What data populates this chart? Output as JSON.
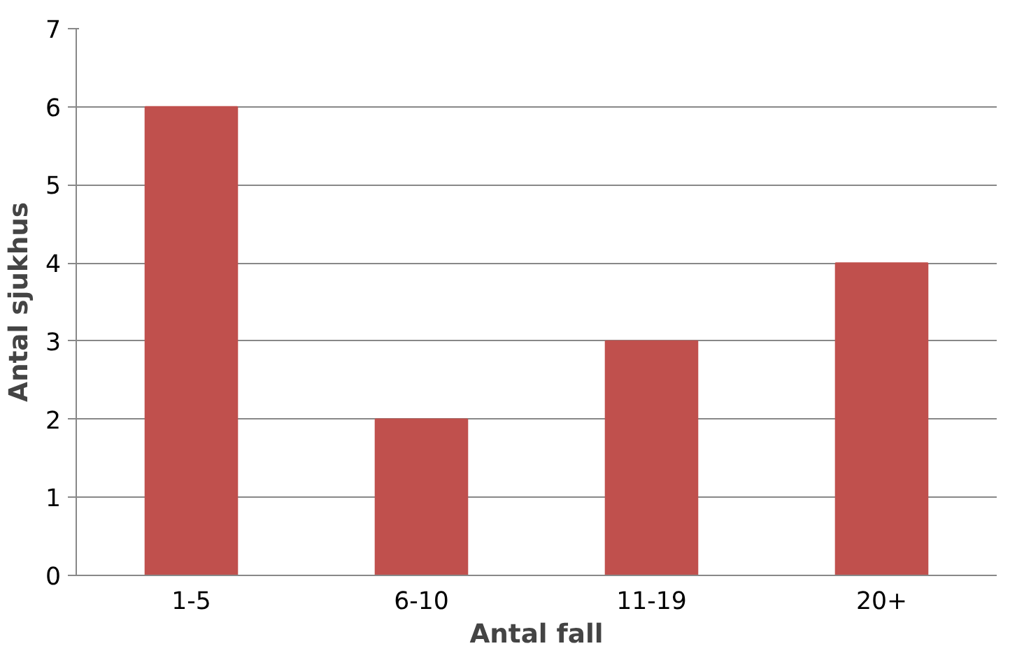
{
  "chart_data": {
    "type": "bar",
    "xlabel": "Antal fall",
    "ylabel": "Antal sjukhus",
    "categories": [
      "1-5",
      "6-10",
      "11-19",
      "20+"
    ],
    "values": [
      6,
      2,
      3,
      4
    ],
    "color": "#c0504d",
    "ylim": [
      0,
      7
    ],
    "yticks": [
      0,
      1,
      2,
      3,
      4,
      5,
      6,
      7
    ],
    "grid": "y"
  }
}
